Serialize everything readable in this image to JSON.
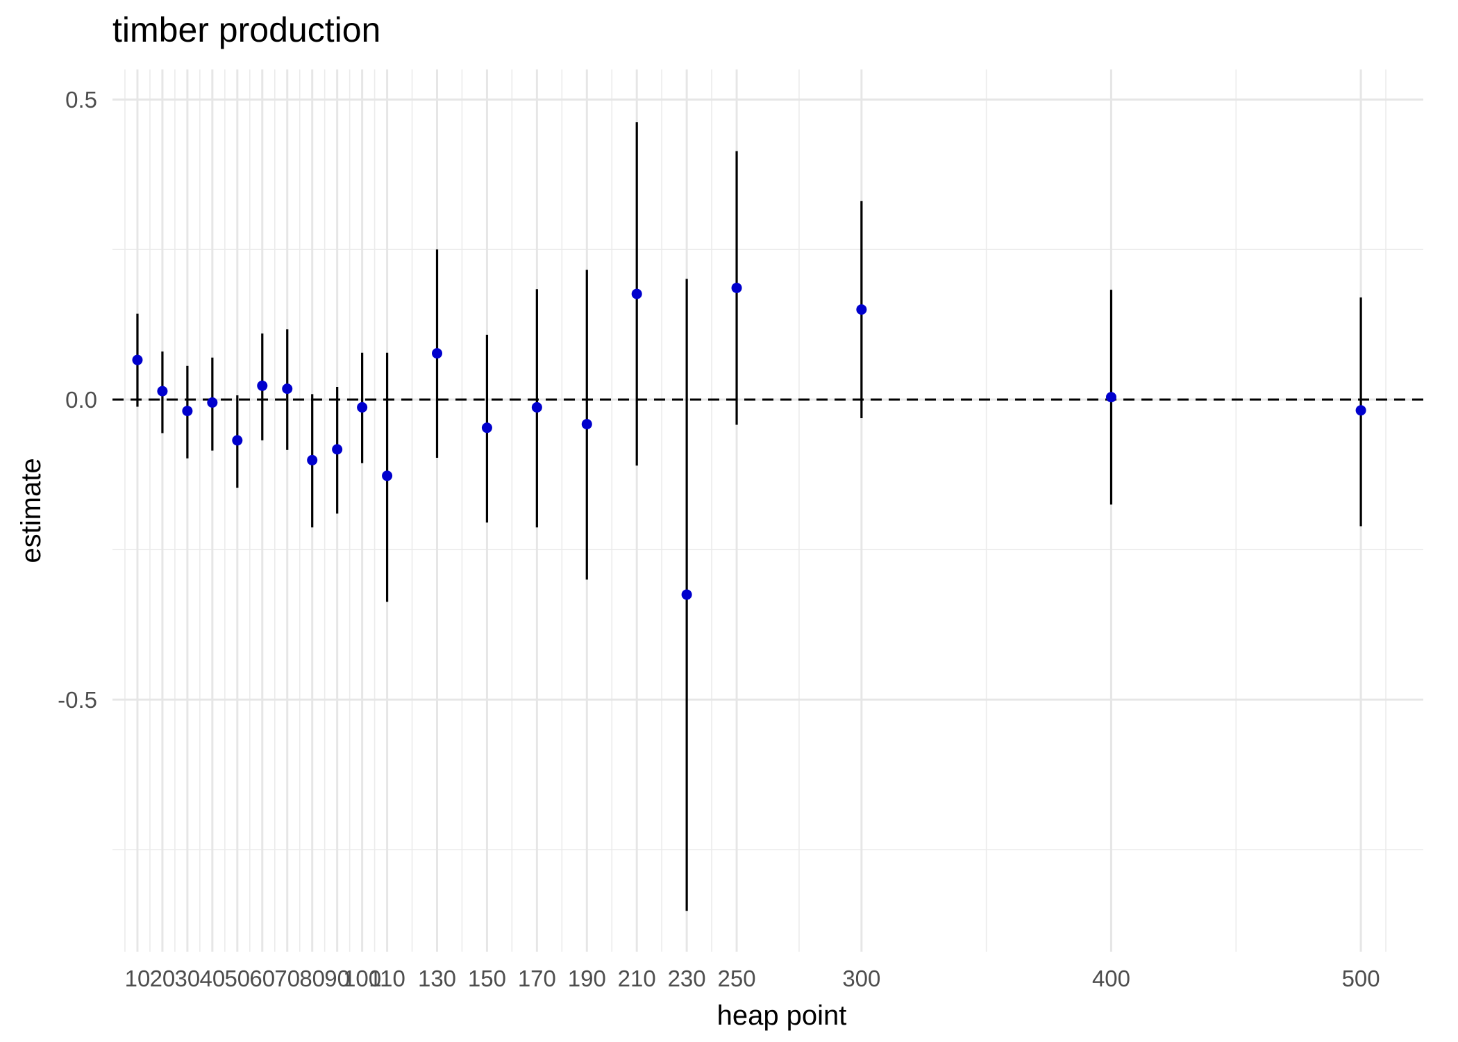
{
  "chart_data": {
    "type": "scatter",
    "title": "timber production",
    "xlabel": "heap point",
    "ylabel": "estimate",
    "xlim": [
      0,
      525
    ],
    "ylim": [
      -0.92,
      0.55
    ],
    "x_ticks": [
      10,
      20,
      30,
      40,
      50,
      60,
      70,
      80,
      90,
      100,
      110,
      130,
      150,
      170,
      190,
      210,
      230,
      250,
      300,
      400,
      500
    ],
    "x_tick_labels": [
      "10",
      "20",
      "30",
      "40",
      "50",
      "60",
      "70",
      "80",
      "90",
      "100",
      "110",
      "130",
      "150",
      "170",
      "190",
      "210",
      "230",
      "250",
      "300",
      "400",
      "500"
    ],
    "y_ticks": [
      0.5,
      0.0,
      -0.5
    ],
    "y_tick_labels": [
      "0.5",
      "0.0",
      "-0.5"
    ],
    "y_minor_gridlines": [
      0.25,
      -0.25,
      -0.75
    ],
    "x_minor_gridlines": [
      5,
      15,
      25,
      35,
      45,
      55,
      65,
      75,
      85,
      95,
      105,
      120,
      140,
      160,
      180,
      200,
      220,
      240,
      275,
      350,
      450,
      510
    ],
    "grid": true,
    "reference_line": {
      "y": 0,
      "style": "dashed"
    },
    "point_color": "#0000cd",
    "interval_color": "#000000",
    "points": [
      {
        "x": 10,
        "y": 0.066,
        "low": -0.012,
        "high": 0.143
      },
      {
        "x": 20,
        "y": 0.014,
        "low": -0.056,
        "high": 0.08
      },
      {
        "x": 30,
        "y": -0.019,
        "low": -0.098,
        "high": 0.056
      },
      {
        "x": 40,
        "y": -0.005,
        "low": -0.085,
        "high": 0.07
      },
      {
        "x": 50,
        "y": -0.068,
        "low": -0.147,
        "high": 0.007
      },
      {
        "x": 60,
        "y": 0.023,
        "low": -0.068,
        "high": 0.11
      },
      {
        "x": 70,
        "y": 0.018,
        "low": -0.084,
        "high": 0.117
      },
      {
        "x": 80,
        "y": -0.101,
        "low": -0.213,
        "high": 0.009
      },
      {
        "x": 90,
        "y": -0.083,
        "low": -0.19,
        "high": 0.021
      },
      {
        "x": 100,
        "y": -0.013,
        "low": -0.106,
        "high": 0.078
      },
      {
        "x": 110,
        "y": -0.127,
        "low": -0.337,
        "high": 0.078
      },
      {
        "x": 130,
        "y": 0.077,
        "low": -0.097,
        "high": 0.25
      },
      {
        "x": 150,
        "y": -0.047,
        "low": -0.205,
        "high": 0.108
      },
      {
        "x": 170,
        "y": -0.013,
        "low": -0.213,
        "high": 0.184
      },
      {
        "x": 190,
        "y": -0.041,
        "low": -0.3,
        "high": 0.216
      },
      {
        "x": 210,
        "y": 0.176,
        "low": -0.11,
        "high": 0.462
      },
      {
        "x": 230,
        "y": -0.325,
        "low": -0.852,
        "high": 0.201
      },
      {
        "x": 250,
        "y": 0.186,
        "low": -0.042,
        "high": 0.414
      },
      {
        "x": 300,
        "y": 0.15,
        "low": -0.031,
        "high": 0.331
      },
      {
        "x": 400,
        "y": 0.004,
        "low": -0.175,
        "high": 0.183
      },
      {
        "x": 500,
        "y": -0.018,
        "low": -0.211,
        "high": 0.17
      }
    ]
  }
}
